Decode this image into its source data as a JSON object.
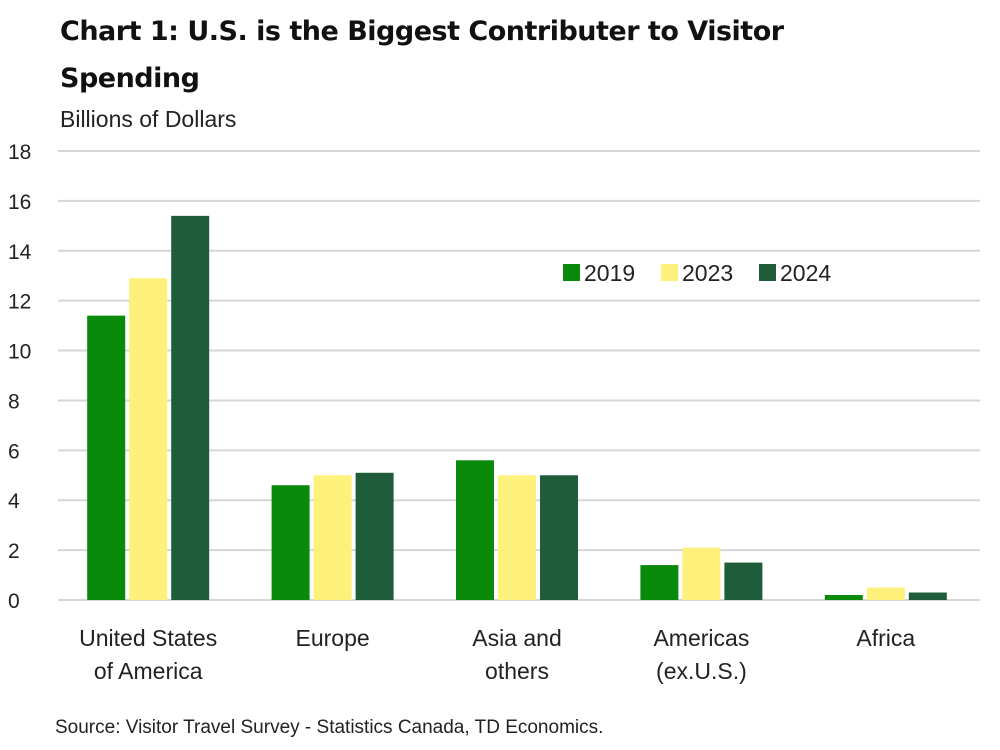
{
  "chart_data": {
    "type": "bar",
    "title": "Chart 1: U.S. is the Biggest Contributer to Visitor Spending",
    "ylabel": "Billions of Dollars",
    "xlabel": "",
    "source": "Source: Visitor Travel Survey - Statistics Canada, TD Economics.",
    "ylim": [
      0,
      18
    ],
    "yticks": [
      "0",
      "2",
      "4",
      "6",
      "8",
      "10",
      "12",
      "14",
      "16",
      "18"
    ],
    "ytick_values": [
      0,
      2,
      4,
      6,
      8,
      10,
      12,
      14,
      16,
      18
    ],
    "grid": true,
    "legend_position": "top-right",
    "categories": [
      [
        "United States",
        "of America"
      ],
      [
        "Europe"
      ],
      [
        "Asia and",
        "others"
      ],
      [
        "Americas",
        "(ex.U.S.)"
      ],
      [
        "Africa"
      ]
    ],
    "series": [
      {
        "name": "2019",
        "color": "#0a8a0a",
        "values": [
          11.4,
          4.6,
          5.6,
          1.4,
          0.2
        ]
      },
      {
        "name": "2023",
        "color": "#fdf17c",
        "values": [
          12.9,
          5.0,
          5.0,
          2.1,
          0.5
        ]
      },
      {
        "name": "2024",
        "color": "#1e5c3a",
        "values": [
          15.4,
          5.1,
          5.0,
          1.5,
          0.3
        ]
      }
    ]
  }
}
